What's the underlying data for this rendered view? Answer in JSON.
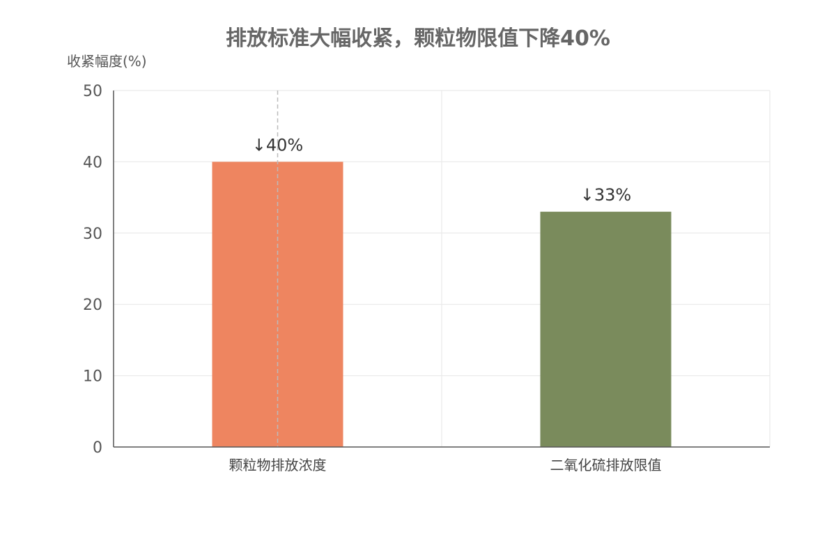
{
  "chart_data": {
    "type": "bar",
    "title": "排放标准大幅收紧，颗粒物限值下降40%",
    "xlabel": "",
    "ylabel": "收紧幅度(%)",
    "categories": [
      "颗粒物排放浓度",
      "二氧化硫排放限值"
    ],
    "values": [
      40,
      33
    ],
    "data_labels": [
      "↓40%",
      "↓33%"
    ],
    "colors": [
      "#EE8560",
      "#7A8B5C"
    ],
    "ylim": [
      0,
      50
    ],
    "yticks": [
      0,
      10,
      20,
      30,
      40,
      50
    ],
    "grid": true,
    "legend": "none"
  }
}
